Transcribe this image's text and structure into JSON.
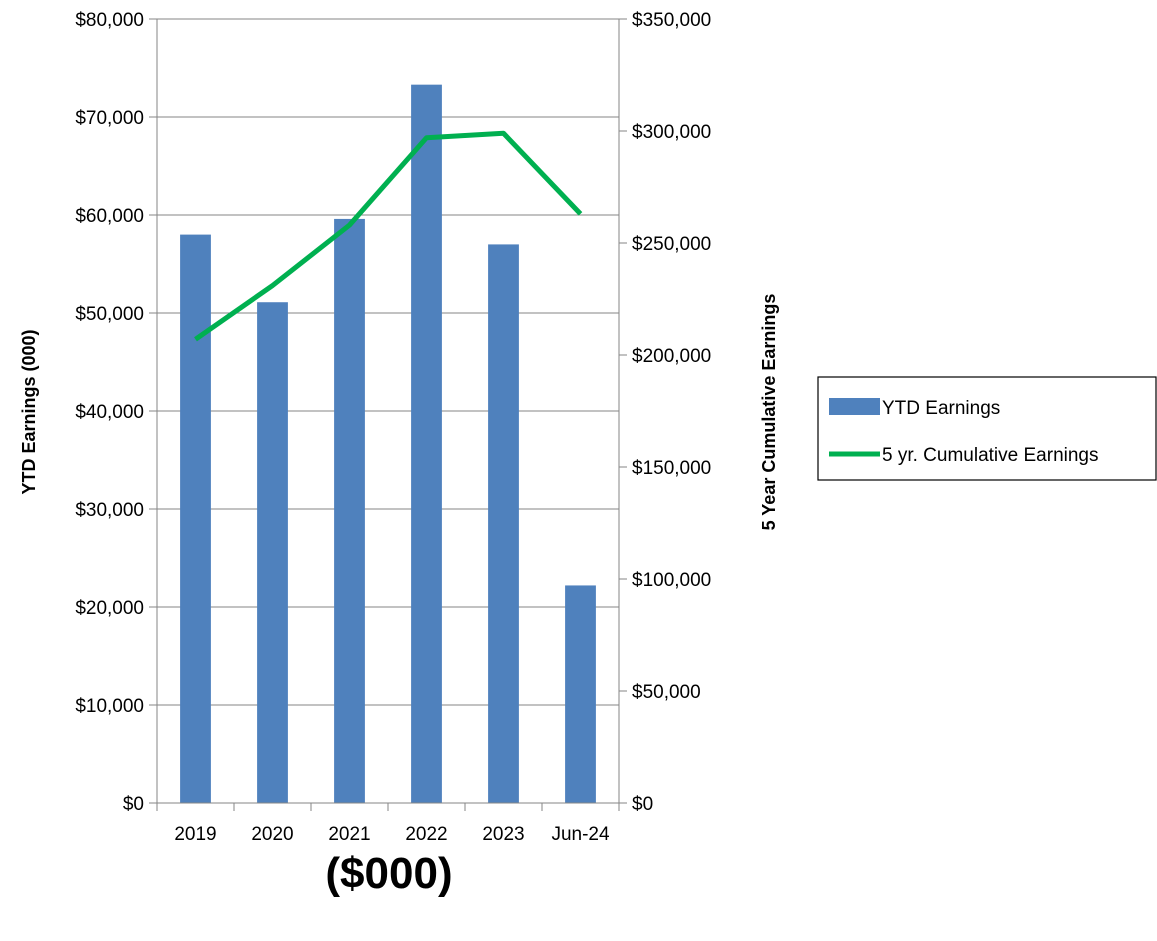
{
  "chart_data": {
    "type": "bar",
    "categories": [
      "2019",
      "2020",
      "2021",
      "2022",
      "2023",
      "Jun-24"
    ],
    "series": [
      {
        "name": "YTD Earnings",
        "type": "bar",
        "axis": "left",
        "values": [
          58000,
          51100,
          59600,
          73300,
          57000,
          22200
        ],
        "color": "#4f81bd"
      },
      {
        "name": "5 yr. Cumulative Earnings",
        "type": "line",
        "axis": "right",
        "values": [
          207000,
          231000,
          258000,
          297000,
          299000,
          263000
        ],
        "color": "#00b050"
      }
    ],
    "ylabel": "YTD Earnings (000)",
    "y2label": "5 Year Cumulative Earnings",
    "xlabel": "($000)",
    "ylim": [
      0,
      80000
    ],
    "y2lim": [
      0,
      350000
    ],
    "yticks": [
      "$0",
      "$10,000",
      "$20,000",
      "$30,000",
      "$40,000",
      "$50,000",
      "$60,000",
      "$70,000",
      "$80,000"
    ],
    "y2ticks": [
      "$0",
      "$50,000",
      "$100,000",
      "$150,000",
      "$200,000",
      "$250,000",
      "$300,000",
      "$350,000"
    ],
    "grid": true,
    "legend": {
      "position": "right",
      "entries": [
        "YTD Earnings",
        "5 yr. Cumulative Earnings"
      ]
    }
  }
}
